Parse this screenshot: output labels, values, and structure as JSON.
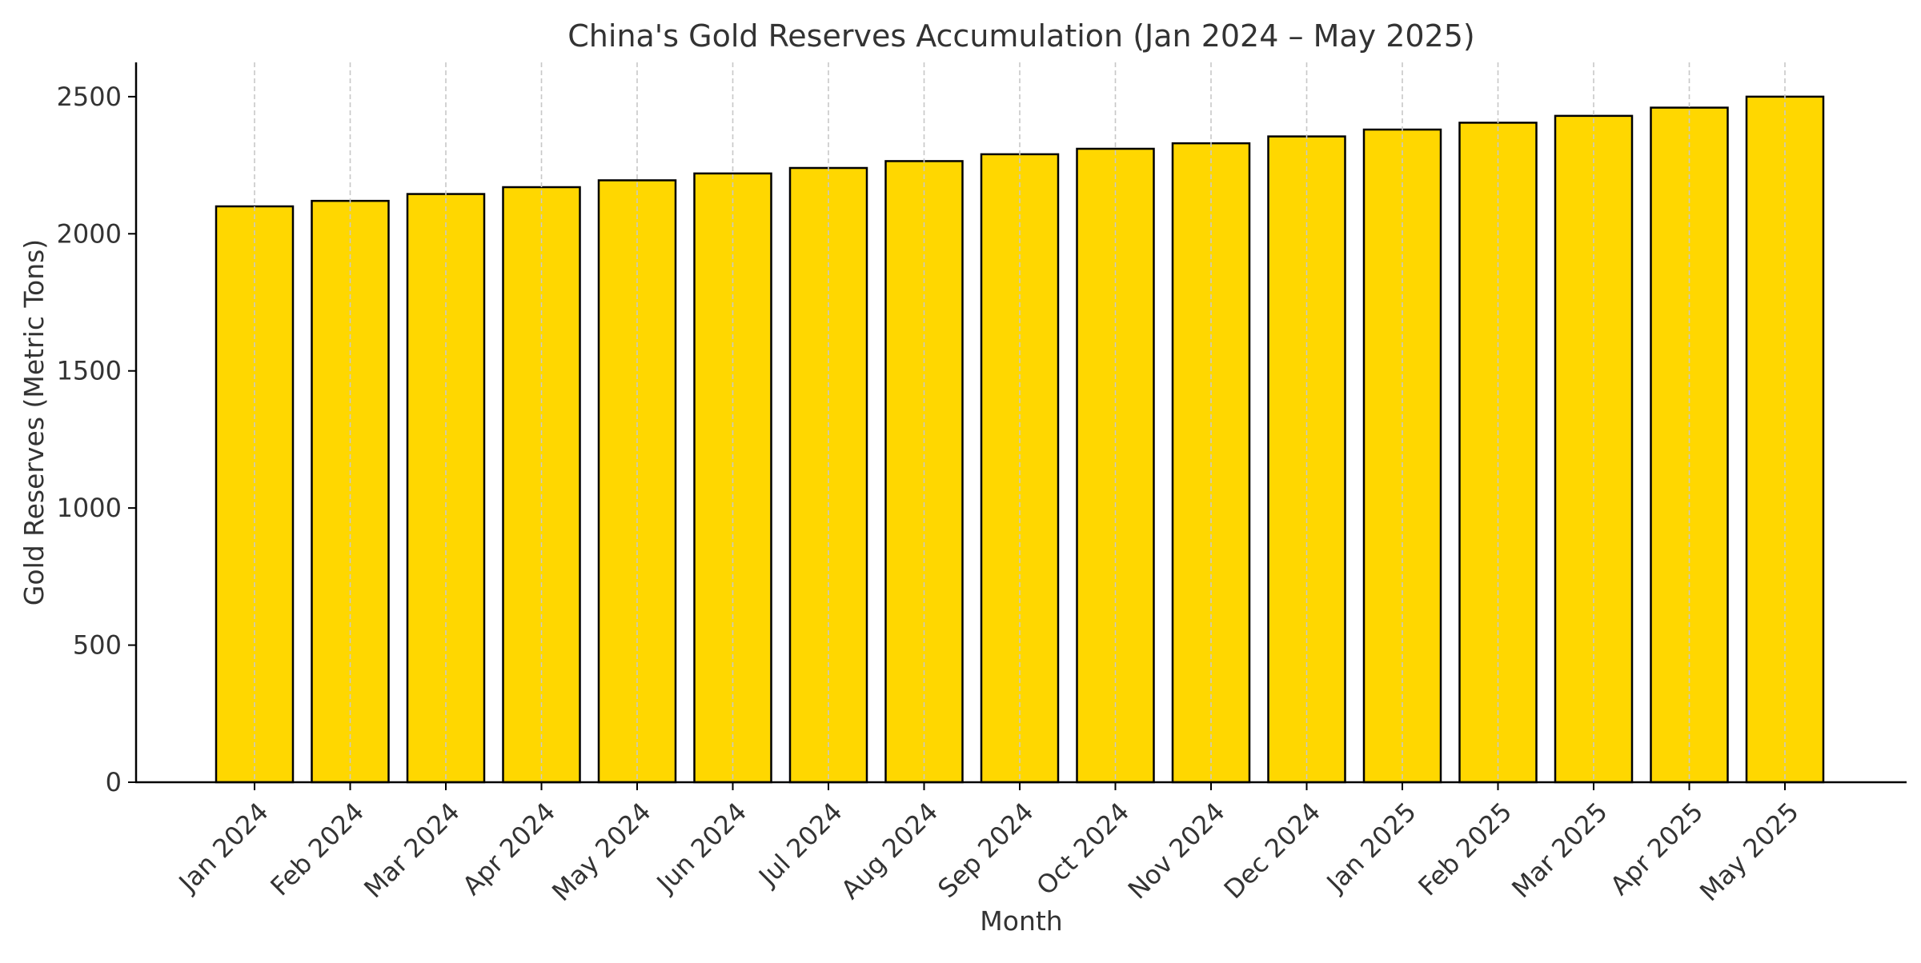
{
  "chart_data": {
    "type": "bar",
    "title": "China's Gold Reserves Accumulation (Jan 2024 – May 2025)",
    "xlabel": "Month",
    "ylabel": "Gold Reserves (Metric Tons)",
    "categories": [
      "Jan 2024",
      "Feb 2024",
      "Mar 2024",
      "Apr 2024",
      "May 2024",
      "Jun 2024",
      "Jul 2024",
      "Aug 2024",
      "Sep 2024",
      "Oct 2024",
      "Nov 2024",
      "Dec 2024",
      "Jan 2025",
      "Feb 2025",
      "Mar 2025",
      "Apr 2025",
      "May 2025"
    ],
    "values": [
      2100,
      2120,
      2145,
      2170,
      2195,
      2220,
      2240,
      2265,
      2290,
      2310,
      2330,
      2355,
      2380,
      2405,
      2430,
      2460,
      2500
    ],
    "ylim": [
      0,
      2625
    ],
    "yticks": [
      0,
      500,
      1000,
      1500,
      2000,
      2500
    ],
    "grid": "x-dashed",
    "colors": {
      "bar_fill": "#FFD700",
      "bar_edge": "#000000",
      "grid": "#c8c8c8",
      "axis": "#000000",
      "text": "#333333"
    }
  }
}
